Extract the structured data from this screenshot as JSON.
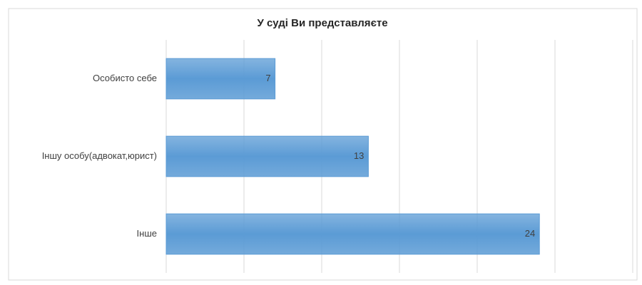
{
  "chart_data": {
    "type": "bar",
    "orientation": "horizontal",
    "title": "У суді Ви представляєте",
    "categories": [
      "Особисто себе",
      "Іншу особу(адвокат,юрист)",
      "Інше"
    ],
    "values": [
      7,
      13,
      24
    ],
    "color": "#5b9bd5",
    "xlim": [
      0,
      30
    ],
    "xticks": [
      0,
      5,
      10,
      15,
      20,
      25,
      30
    ],
    "grid": true
  }
}
